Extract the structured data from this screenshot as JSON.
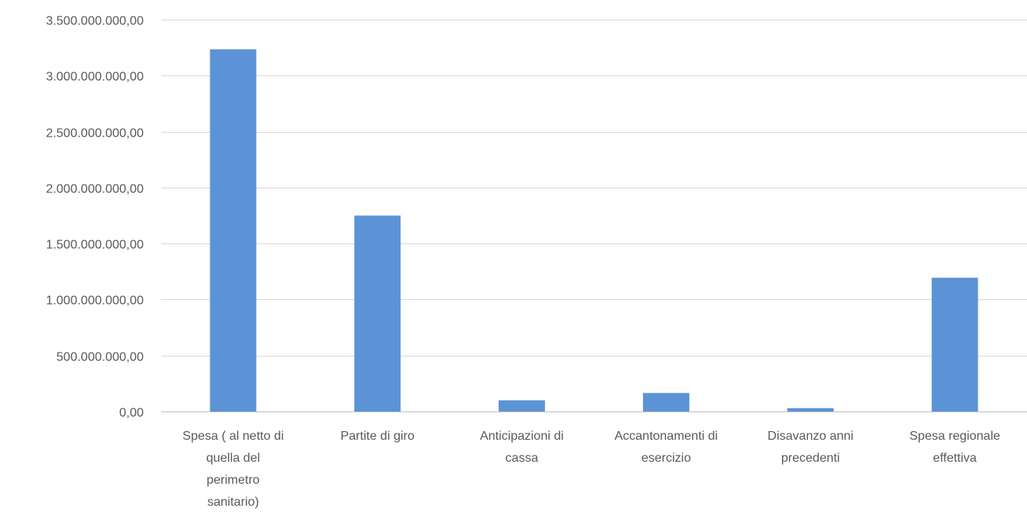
{
  "chart_data": {
    "type": "bar",
    "categories": [
      [
        "Spesa ( al netto di",
        "quella del",
        "perimetro",
        "sanitario)"
      ],
      [
        "Partite di giro"
      ],
      [
        "Anticipazioni di",
        "cassa"
      ],
      [
        "Accantonamenti di",
        "esercizio"
      ],
      [
        "Disavanzo anni",
        "precedenti"
      ],
      [
        "Spesa regionale",
        "effettiva"
      ]
    ],
    "values": [
      3235000000,
      1750000000,
      100000000,
      165000000,
      30000000,
      1195000000
    ],
    "ylim": [
      0,
      3500000000
    ],
    "yticks": [
      0,
      500000000,
      1000000000,
      1500000000,
      2000000000,
      2500000000,
      3000000000,
      3500000000
    ],
    "ytick_labels": [
      "0,00",
      "500.000.000,00",
      "1.000.000.000,00",
      "1.500.000.000,00",
      "2.000.000.000,00",
      "2.500.000.000,00",
      "3.000.000.000,00",
      "3.500.000.000,00"
    ],
    "title": "",
    "xlabel": "",
    "ylabel": "",
    "grid": true,
    "legend": "none",
    "bar_color": "#5b93d6"
  }
}
